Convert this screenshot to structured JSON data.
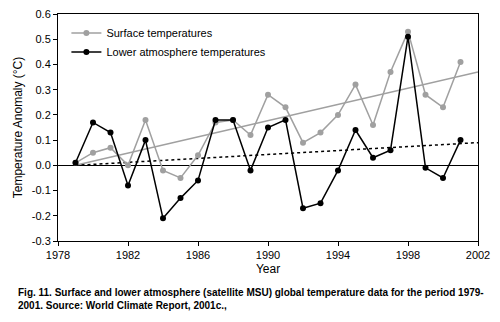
{
  "chart_data": {
    "type": "line",
    "caption": "Fig. 11. Surface and lower atmosphere (satellite MSU) global temperature data for the period 1979-2001. Source: World Climate Report, 2001c.,",
    "x_label": "Year",
    "y_label": "Temperature Anomaly (°C)",
    "x": [
      1979,
      1980,
      1981,
      1982,
      1983,
      1984,
      1985,
      1986,
      1987,
      1988,
      1989,
      1990,
      1991,
      1992,
      1993,
      1994,
      1995,
      1996,
      1997,
      1998,
      1999,
      2000,
      2001
    ],
    "series": [
      {
        "name": "Surface temperatures",
        "color": "#a0a0a0",
        "marker": "circle",
        "line_style": "solid",
        "values": [
          0.01,
          0.05,
          0.07,
          0.0,
          0.18,
          -0.02,
          -0.05,
          0.04,
          0.17,
          0.18,
          0.12,
          0.28,
          0.23,
          0.09,
          0.13,
          0.2,
          0.32,
          0.16,
          0.37,
          0.53,
          0.28,
          0.23,
          0.41
        ]
      },
      {
        "name": "Lower atmosphere temperatures",
        "color": "#000000",
        "marker": "circle",
        "line_style": "solid",
        "values": [
          0.01,
          0.17,
          0.13,
          -0.08,
          0.1,
          -0.21,
          -0.13,
          -0.06,
          0.18,
          0.18,
          -0.02,
          0.15,
          0.18,
          -0.17,
          -0.15,
          -0.02,
          0.14,
          0.03,
          0.06,
          0.51,
          -0.01,
          -0.05,
          0.1
        ]
      }
    ],
    "trend_lines": [
      {
        "x": [
          1979,
          2002
        ],
        "values": [
          0.0,
          0.37
        ],
        "color": "#a0a0a0",
        "line_style": "solid"
      },
      {
        "x": [
          1979,
          2002
        ],
        "values": [
          0.0,
          0.09
        ],
        "color": "#000000",
        "line_style": "dot"
      }
    ],
    "xlim": [
      1978,
      2002
    ],
    "xticks": [
      1978,
      1982,
      1986,
      1990,
      1994,
      1998,
      2002
    ],
    "ylim": [
      -0.3,
      0.6
    ],
    "yticks": [
      -0.3,
      -0.2,
      -0.1,
      {
        "value": 0,
        "label": "0.0"
      },
      0.1,
      0.2,
      0.3,
      0.4,
      0.5,
      0.6
    ],
    "grid": false,
    "legend": "upper left"
  }
}
